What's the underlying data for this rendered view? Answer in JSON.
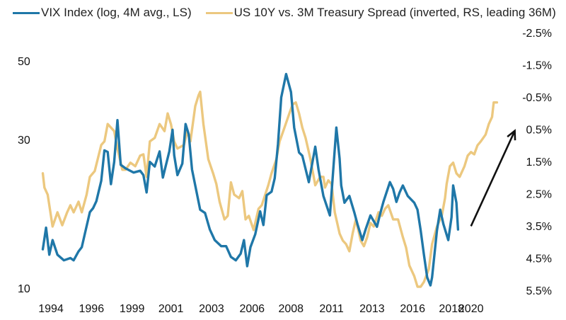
{
  "chart_data": {
    "type": "line",
    "title": "",
    "xlabel": "",
    "ylabel_left": "",
    "ylabel_right": "",
    "legend_position": "top-left",
    "grid": false,
    "x_ticks": [
      "1994",
      "1996",
      "1999",
      "2001",
      "2003",
      "2006",
      "2008",
      "2011",
      "2013",
      "2016",
      "2018",
      "2020"
    ],
    "x_tick_years": [
      1994.0,
      1996.5,
      1999.0,
      2001.4,
      2003.9,
      2006.4,
      2008.8,
      2011.3,
      2013.8,
      2016.3,
      2018.7,
      2019.9
    ],
    "xlim": [
      1993.5,
      2021.8
    ],
    "left_axis": {
      "scale": "log",
      "ticks": [
        "50",
        "30",
        "10"
      ],
      "tick_values": [
        50,
        30,
        10
      ],
      "ylim": [
        10,
        50
      ]
    },
    "right_axis": {
      "inverted": true,
      "ticks": [
        "-2.5%",
        "-1.5%",
        "-0.5%",
        "0.5%",
        "1.5%",
        "2.5%",
        "3.5%",
        "4.5%",
        "5.5%"
      ],
      "tick_values": [
        -2.5,
        -1.5,
        -0.5,
        0.5,
        1.5,
        2.5,
        3.5,
        4.5,
        5.5
      ],
      "ylim": [
        -2.5,
        5.5
      ]
    },
    "series": [
      {
        "name": "VIX Index (log, 4M avg., LS)",
        "axis": "left",
        "color": "#1f77a8",
        "points": [
          [
            1993.5,
            13.3
          ],
          [
            1993.7,
            15.5
          ],
          [
            1993.9,
            12.8
          ],
          [
            1994.1,
            14.2
          ],
          [
            1994.4,
            12.8
          ],
          [
            1994.8,
            12.3
          ],
          [
            1995.2,
            12.5
          ],
          [
            1995.4,
            12.3
          ],
          [
            1995.7,
            13.1
          ],
          [
            1995.9,
            13.5
          ],
          [
            1996.1,
            14.9
          ],
          [
            1996.4,
            17.3
          ],
          [
            1996.6,
            17.8
          ],
          [
            1996.8,
            18.7
          ],
          [
            1997.1,
            21.6
          ],
          [
            1997.3,
            26.8
          ],
          [
            1997.5,
            26.5
          ],
          [
            1997.7,
            21.1
          ],
          [
            1997.9,
            24.7
          ],
          [
            1998.1,
            33.2
          ],
          [
            1998.3,
            24.2
          ],
          [
            1998.6,
            23.6
          ],
          [
            1999.1,
            22.9
          ],
          [
            1999.5,
            23.2
          ],
          [
            1999.7,
            22.5
          ],
          [
            1999.9,
            19.9
          ],
          [
            2000.1,
            24.7
          ],
          [
            2000.4,
            23.9
          ],
          [
            2000.7,
            26.6
          ],
          [
            2000.9,
            22.1
          ],
          [
            2001.3,
            26.6
          ],
          [
            2001.5,
            31.0
          ],
          [
            2001.6,
            25.9
          ],
          [
            2001.8,
            22.5
          ],
          [
            2002.1,
            24.4
          ],
          [
            2002.3,
            32.3
          ],
          [
            2002.5,
            30.0
          ],
          [
            2002.7,
            23.4
          ],
          [
            2003.2,
            17.6
          ],
          [
            2003.5,
            17.2
          ],
          [
            2003.8,
            15.3
          ],
          [
            2004.1,
            14.2
          ],
          [
            2004.5,
            13.6
          ],
          [
            2004.8,
            13.6
          ],
          [
            2005.1,
            12.6
          ],
          [
            2005.4,
            12.3
          ],
          [
            2005.7,
            12.9
          ],
          [
            2005.9,
            14.2
          ],
          [
            2006.1,
            11.8
          ],
          [
            2006.3,
            13.5
          ],
          [
            2006.6,
            14.8
          ],
          [
            2006.9,
            17.4
          ],
          [
            2007.1,
            15.8
          ],
          [
            2007.3,
            19.5
          ],
          [
            2007.6,
            20.0
          ],
          [
            2007.8,
            22.0
          ],
          [
            2008.0,
            28.0
          ],
          [
            2008.2,
            39.0
          ],
          [
            2008.5,
            46.0
          ],
          [
            2008.8,
            40.5
          ],
          [
            2009.0,
            31.5
          ],
          [
            2009.3,
            26.4
          ],
          [
            2009.5,
            25.8
          ],
          [
            2009.9,
            21.4
          ],
          [
            2010.3,
            27.5
          ],
          [
            2010.5,
            23.4
          ],
          [
            2010.8,
            19.4
          ],
          [
            2011.2,
            16.9
          ],
          [
            2011.6,
            31.5
          ],
          [
            2011.8,
            25.3
          ],
          [
            2011.9,
            20.9
          ],
          [
            2012.1,
            18.5
          ],
          [
            2012.4,
            19.4
          ],
          [
            2012.7,
            17.3
          ],
          [
            2012.9,
            15.9
          ],
          [
            2013.2,
            14.2
          ],
          [
            2013.4,
            15.3
          ],
          [
            2013.7,
            16.9
          ],
          [
            2014.1,
            15.6
          ],
          [
            2014.3,
            17.1
          ],
          [
            2014.5,
            18.6
          ],
          [
            2014.9,
            21.4
          ],
          [
            2015.1,
            20.4
          ],
          [
            2015.3,
            18.6
          ],
          [
            2015.5,
            19.9
          ],
          [
            2015.7,
            20.9
          ],
          [
            2016.0,
            19.4
          ],
          [
            2016.4,
            18.5
          ],
          [
            2016.6,
            17.6
          ],
          [
            2016.8,
            15.2
          ],
          [
            2017.0,
            12.8
          ],
          [
            2017.2,
            10.9
          ],
          [
            2017.4,
            10.3
          ],
          [
            2017.5,
            10.9
          ],
          [
            2017.8,
            15.2
          ],
          [
            2018.0,
            17.6
          ],
          [
            2018.2,
            15.9
          ],
          [
            2018.5,
            14.2
          ],
          [
            2018.7,
            16.7
          ],
          [
            2018.8,
            20.9
          ],
          [
            2019.0,
            18.5
          ],
          [
            2019.1,
            15.3
          ]
        ]
      },
      {
        "name": "US 10Y vs. 3M Treasury Spread (inverted, RS, leading 36M)",
        "axis": "right",
        "color": "#ecc87f",
        "points": [
          [
            1993.5,
            1.87
          ],
          [
            1993.6,
            2.31
          ],
          [
            1993.8,
            2.53
          ],
          [
            1994.1,
            3.52
          ],
          [
            1994.4,
            3.08
          ],
          [
            1994.7,
            3.48
          ],
          [
            1995.0,
            3.08
          ],
          [
            1995.2,
            2.86
          ],
          [
            1995.4,
            3.08
          ],
          [
            1995.7,
            2.75
          ],
          [
            1995.9,
            3.08
          ],
          [
            1996.2,
            2.53
          ],
          [
            1996.4,
            1.98
          ],
          [
            1996.7,
            1.8
          ],
          [
            1997.1,
            0.99
          ],
          [
            1997.3,
            0.88
          ],
          [
            1997.5,
            0.34
          ],
          [
            1997.9,
            0.56
          ],
          [
            1998.1,
            1.1
          ],
          [
            1998.4,
            1.76
          ],
          [
            1998.6,
            1.76
          ],
          [
            1998.9,
            1.54
          ],
          [
            1999.2,
            1.65
          ],
          [
            1999.5,
            1.32
          ],
          [
            1999.7,
            1.28
          ],
          [
            1999.9,
            1.98
          ],
          [
            2000.1,
            0.88
          ],
          [
            2000.4,
            0.77
          ],
          [
            2000.7,
            0.34
          ],
          [
            2001.0,
            0.56
          ],
          [
            2001.2,
            0.01
          ],
          [
            2001.4,
            0.34
          ],
          [
            2001.6,
            0.88
          ],
          [
            2001.8,
            1.1
          ],
          [
            2002.2,
            0.99
          ],
          [
            2002.4,
            0.56
          ],
          [
            2002.6,
            0.88
          ],
          [
            2002.9,
            -0.22
          ],
          [
            2003.1,
            -0.55
          ],
          [
            2003.2,
            -0.66
          ],
          [
            2003.4,
            0.34
          ],
          [
            2003.7,
            1.43
          ],
          [
            2004.0,
            1.87
          ],
          [
            2004.2,
            2.2
          ],
          [
            2004.4,
            2.75
          ],
          [
            2004.7,
            3.3
          ],
          [
            2004.9,
            3.19
          ],
          [
            2005.1,
            2.15
          ],
          [
            2005.3,
            2.53
          ],
          [
            2005.6,
            2.64
          ],
          [
            2005.8,
            2.42
          ],
          [
            2006.0,
            3.3
          ],
          [
            2006.2,
            3.19
          ],
          [
            2006.5,
            3.63
          ],
          [
            2006.8,
            2.97
          ],
          [
            2007.0,
            2.86
          ],
          [
            2007.4,
            2.24
          ],
          [
            2007.6,
            1.87
          ],
          [
            2007.9,
            1.43
          ],
          [
            2008.1,
            0.88
          ],
          [
            2008.4,
            0.45
          ],
          [
            2008.7,
            0.01
          ],
          [
            2008.9,
            -0.27
          ],
          [
            2009.1,
            -0.33
          ],
          [
            2009.3,
            0.01
          ],
          [
            2009.5,
            0.45
          ],
          [
            2009.7,
            0.77
          ],
          [
            2010.0,
            1.43
          ],
          [
            2010.3,
            2.24
          ],
          [
            2010.6,
            1.98
          ],
          [
            2010.8,
            1.98
          ],
          [
            2010.9,
            2.31
          ],
          [
            2011.1,
            2.09
          ],
          [
            2011.3,
            2.2
          ],
          [
            2011.5,
            3.08
          ],
          [
            2011.8,
            3.74
          ],
          [
            2012.0,
            3.96
          ],
          [
            2012.2,
            4.07
          ],
          [
            2012.4,
            4.29
          ],
          [
            2012.6,
            3.74
          ],
          [
            2012.8,
            3.3
          ],
          [
            2013.1,
            3.96
          ],
          [
            2013.3,
            4.13
          ],
          [
            2013.5,
            3.85
          ],
          [
            2013.7,
            3.41
          ],
          [
            2013.9,
            3.52
          ],
          [
            2014.2,
            3.08
          ],
          [
            2014.4,
            3.19
          ],
          [
            2014.6,
            2.97
          ],
          [
            2014.8,
            2.86
          ],
          [
            2015.1,
            3.3
          ],
          [
            2015.4,
            3.3
          ],
          [
            2015.7,
            3.85
          ],
          [
            2015.9,
            4.18
          ],
          [
            2016.1,
            4.73
          ],
          [
            2016.4,
            5.06
          ],
          [
            2016.6,
            5.39
          ],
          [
            2016.8,
            5.39
          ],
          [
            2017.0,
            5.24
          ],
          [
            2017.3,
            4.84
          ],
          [
            2017.5,
            4.07
          ],
          [
            2017.8,
            3.52
          ],
          [
            2018.1,
            3.19
          ],
          [
            2018.3,
            2.64
          ],
          [
            2018.4,
            2.2
          ],
          [
            2018.6,
            1.65
          ],
          [
            2018.8,
            1.54
          ],
          [
            2019.0,
            1.87
          ],
          [
            2019.2,
            1.98
          ],
          [
            2019.5,
            1.65
          ],
          [
            2019.7,
            1.32
          ],
          [
            2019.9,
            1.21
          ],
          [
            2020.1,
            1.28
          ],
          [
            2020.3,
            1.0
          ],
          [
            2020.5,
            0.88
          ],
          [
            2020.8,
            0.67
          ],
          [
            2021.0,
            0.34
          ],
          [
            2021.2,
            0.12
          ],
          [
            2021.3,
            -0.33
          ],
          [
            2021.5,
            -0.33
          ]
        ]
      }
    ],
    "annotations": [
      {
        "type": "arrow",
        "label": "",
        "from": {
          "year": 2019.9,
          "spread": 3.51
        },
        "to": {
          "year": 2022.6,
          "spread": 0.55
        },
        "color": "#111111"
      }
    ]
  }
}
